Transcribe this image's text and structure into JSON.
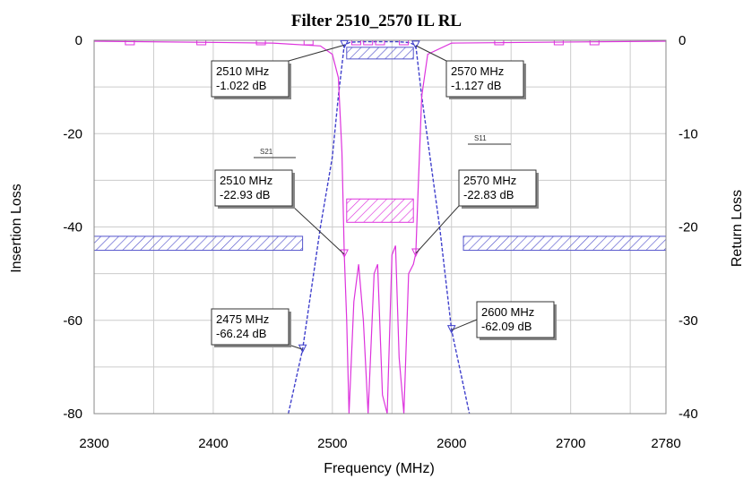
{
  "chart_data": {
    "type": "line",
    "title": "Filter 2510_2570 IL RL",
    "xlabel": "Frequency (MHz)",
    "ylabel_left": "Insertion Loss",
    "ylabel_right": "Return Loss",
    "xlim": [
      2300,
      2780
    ],
    "ylim_left": [
      -80,
      0
    ],
    "ylim_right": [
      -40,
      0
    ],
    "x_ticks": [
      2300,
      2400,
      2500,
      2600,
      2700,
      2780
    ],
    "y_ticks_left": [
      0,
      -20,
      -40,
      -60,
      -80
    ],
    "y_ticks_right": [
      0,
      -10,
      -20,
      -30,
      -40
    ],
    "grid": true,
    "colors": {
      "s21": "#4040cc",
      "s11": "#dd33dd",
      "mask": "#5555cc",
      "grid": "#cccccc"
    },
    "series": [
      {
        "name": "S21",
        "axis": "left",
        "color": "#4040cc",
        "x": [
          2463,
          2475,
          2490,
          2500,
          2505,
          2510,
          2515,
          2525,
          2540,
          2555,
          2565,
          2570,
          2575,
          2590,
          2600,
          2615
        ],
        "y": [
          -80,
          -66.24,
          -40,
          -25,
          -12,
          -1.022,
          -0.4,
          -0.3,
          -0.3,
          -0.3,
          -0.5,
          -1.127,
          -12,
          -40,
          -62.09,
          -80
        ]
      },
      {
        "name": "S11",
        "axis": "right",
        "color": "#dd33dd",
        "x": [
          2300,
          2450,
          2490,
          2500,
          2505,
          2508,
          2510,
          2512,
          2514,
          2518,
          2522,
          2526,
          2530,
          2535,
          2538,
          2542,
          2546,
          2550,
          2553,
          2556,
          2560,
          2564,
          2568,
          2570,
          2572,
          2575,
          2580,
          2600,
          2780
        ],
        "y": [
          -0.1,
          -0.3,
          -0.6,
          -1.5,
          -4,
          -12,
          -22.93,
          -30,
          -40,
          -28,
          -24,
          -30,
          -40,
          -25,
          -24,
          -38,
          -40,
          -23,
          -22,
          -34,
          -40,
          -25,
          -24,
          -22.83,
          -16,
          -6,
          -1.5,
          -0.3,
          -0.1
        ]
      }
    ],
    "markers": [
      {
        "series": "S21",
        "x": 2510,
        "y": -1.022,
        "label": [
          "2510 MHz",
          "-1.022 dB"
        ]
      },
      {
        "series": "S21",
        "x": 2570,
        "y": -1.127,
        "label": [
          "2570 MHz",
          "-1.127 dB"
        ]
      },
      {
        "series": "S11",
        "x": 2510,
        "y": -22.93,
        "label": [
          "2510 MHz",
          "-22.93 dB"
        ]
      },
      {
        "series": "S11",
        "x": 2570,
        "y": -22.83,
        "label": [
          "2570 MHz",
          "-22.83 dB"
        ]
      },
      {
        "series": "S21",
        "x": 2475,
        "y": -66.24,
        "label": [
          "2475 MHz",
          "-66.24 dB"
        ]
      },
      {
        "series": "S21",
        "x": 2600,
        "y": -62.09,
        "label": [
          "2600 MHz",
          "-62.09 dB"
        ]
      }
    ],
    "masks": [
      {
        "axis": "left",
        "x": [
          2300,
          2475
        ],
        "y": [
          -45,
          -42
        ]
      },
      {
        "axis": "left",
        "x": [
          2610,
          2780
        ],
        "y": [
          -45,
          -42
        ]
      },
      {
        "axis": "left",
        "x": [
          2512,
          2568
        ],
        "y": [
          -4,
          -1.5
        ]
      },
      {
        "axis": "right",
        "x": [
          2512,
          2568
        ],
        "y": [
          -19.5,
          -17
        ]
      }
    ]
  }
}
